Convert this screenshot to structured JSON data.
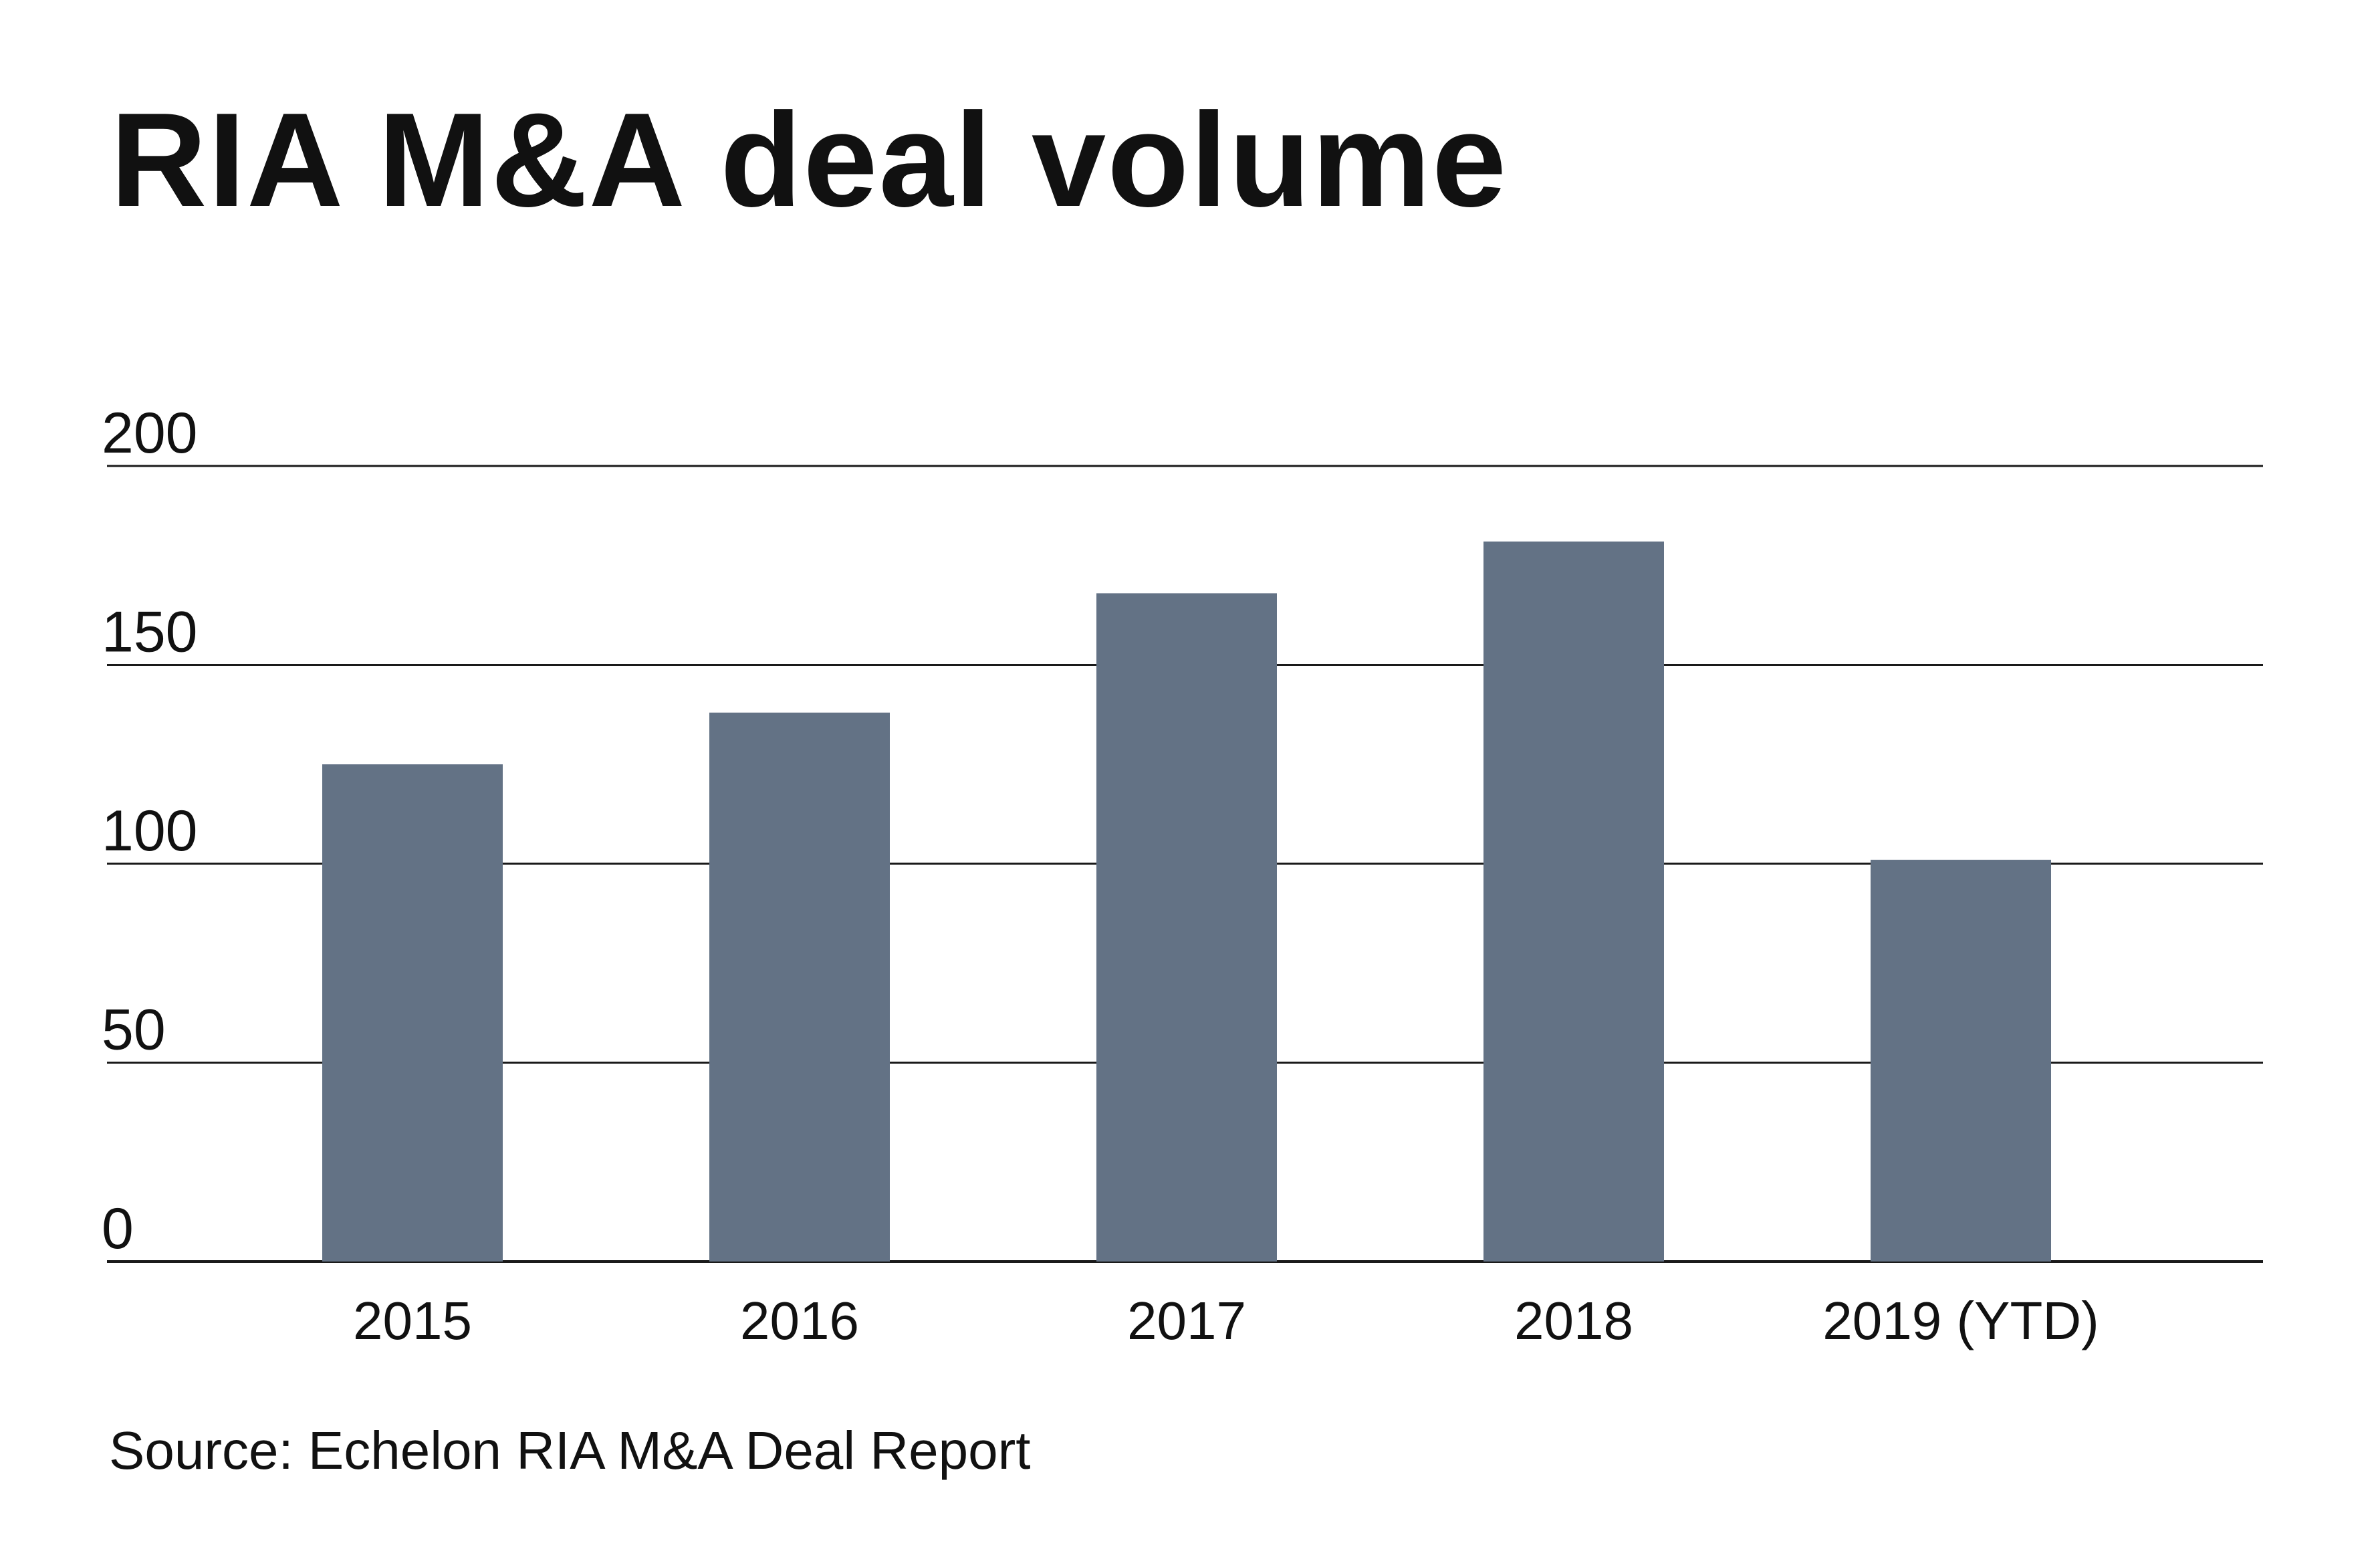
{
  "title": "RIA M&A deal volume",
  "source": "Source: Echelon RIA M&A Deal Report",
  "colors": {
    "bar": "#637285",
    "gridline": "#1a1a1a",
    "text": "#111111"
  },
  "chart_data": {
    "type": "bar",
    "title": "RIA M&A deal volume",
    "xlabel": "",
    "ylabel": "",
    "categories": [
      "2015",
      "2016",
      "2017",
      "2018",
      "2019 (YTD)"
    ],
    "values": [
      125,
      138,
      168,
      181,
      101
    ],
    "ylim": [
      0,
      200
    ],
    "yticks": [
      0,
      50,
      100,
      150,
      200
    ],
    "ytick_labels": [
      "0",
      "50",
      "100",
      "150",
      "200"
    ],
    "grid": true,
    "legend": "none"
  }
}
